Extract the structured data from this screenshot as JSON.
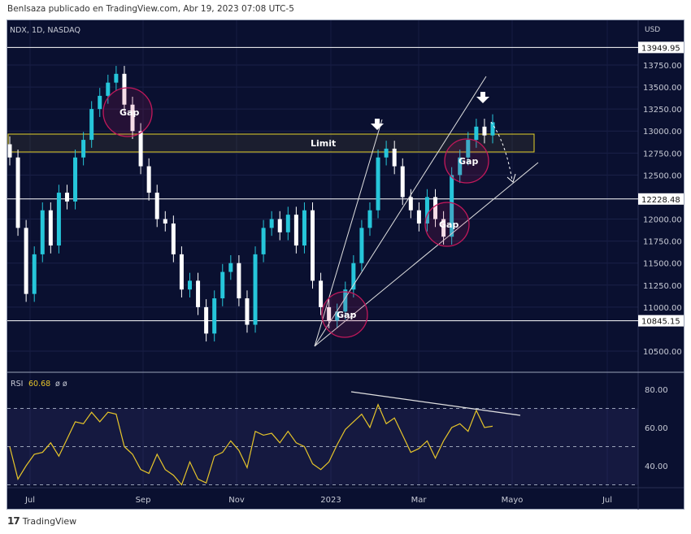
{
  "header": {
    "publisher": "BenIsaza publicado en TradingView.com, Abr 19, 2023 07:08 UTC-5"
  },
  "symbol_legend": "NDX, 1D, NASDAQ",
  "currency": "USD",
  "footer": {
    "brand": "TradingView"
  },
  "colors": {
    "background": "#0a1030",
    "up": "#26c6da",
    "down": "#ffffff",
    "rsi": "#e6c52a",
    "limit": "#e6d22a",
    "gap_circle": "#c2185b"
  },
  "annotations": {
    "limit_label": "Limit",
    "gap_labels": [
      "Gap",
      "Gap",
      "Gap",
      "Gap"
    ]
  },
  "chart_data": [
    {
      "type": "candlestick",
      "title": "NDX, 1D, NASDAQ",
      "ylim": [
        10400,
        14000
      ],
      "yticks": [
        "13750.00",
        "13500.00",
        "13250.00",
        "13000.00",
        "12750.00",
        "12500.00",
        "12000.00",
        "11750.00",
        "11500.00",
        "11250.00",
        "11000.00",
        "10500.00"
      ],
      "ytick_values": [
        13750,
        13500,
        13250,
        13000,
        12750,
        12500,
        12000,
        11750,
        11500,
        11250,
        11000,
        10500
      ],
      "price_lines": [
        {
          "label": "13949.95",
          "value": 13949.95
        },
        {
          "label": "12228.48",
          "value": 12228.48
        },
        {
          "label": "10845.15",
          "value": 10845.15
        }
      ],
      "xticks": [
        "Jul",
        "Sep",
        "Nov",
        "2023",
        "Mar",
        "Mayo",
        "Jul"
      ],
      "closes": [
        12700,
        11900,
        11150,
        11600,
        12100,
        11700,
        12300,
        12200,
        12700,
        12900,
        13250,
        13400,
        13550,
        13650,
        13300,
        13000,
        12600,
        12300,
        12000,
        11950,
        11600,
        11200,
        11300,
        11000,
        10700,
        11100,
        11400,
        11500,
        11100,
        10800,
        11600,
        11900,
        12000,
        11850,
        12050,
        11700,
        12100,
        11300,
        11000,
        10850,
        10950,
        11200,
        11500,
        11900,
        12100,
        12700,
        12800,
        12600,
        12250,
        12100,
        11950,
        12250,
        12000,
        11800,
        12500,
        12700,
        12900,
        13050,
        12950,
        13100
      ]
    },
    {
      "type": "line",
      "title": "RSI",
      "value_label": "60.68",
      "extra_labels": [
        "ø",
        "ø"
      ],
      "ylim": [
        25,
        88
      ],
      "yticks": [
        "80.00",
        "60.00",
        "40.00"
      ],
      "ytick_values": [
        80,
        60,
        40
      ],
      "bands": [
        30,
        50,
        70
      ],
      "values": [
        50,
        33,
        40,
        46,
        47,
        52,
        45,
        54,
        63,
        62,
        68,
        63,
        68,
        67,
        50,
        46,
        38,
        36,
        46,
        38,
        35,
        30,
        42,
        33,
        31,
        45,
        47,
        53,
        48,
        39,
        58,
        56,
        57,
        52,
        58,
        52,
        50,
        41,
        38,
        42,
        51,
        59,
        63,
        67,
        60,
        72,
        62,
        65,
        56,
        47,
        49,
        53,
        44,
        53,
        60,
        62,
        58,
        69,
        60,
        60.68
      ]
    }
  ]
}
